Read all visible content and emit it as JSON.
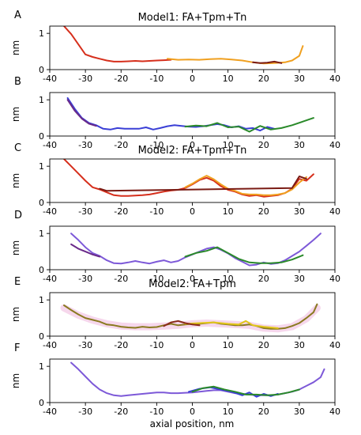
{
  "figure": {
    "xlabel": "axial position, nm"
  },
  "colors": {
    "red": "#d62f1c",
    "orange": "#f0a020",
    "darkred": "#7a1b14",
    "blue": "#3a3fd6",
    "purple": "#6a2a8a",
    "violet": "#7d59d8",
    "green": "#2a8a2a",
    "olive": "#8a7a20",
    "yellow": "#e2c61a",
    "brown": "#8a2a1a",
    "pink": "#f2c6e4",
    "axis": "#000000"
  },
  "chart_data": [
    {
      "type": "line",
      "panel": "A",
      "title": "Model1: FA+Tpm+Tn",
      "ylabel": "nm",
      "xlim": [
        -40,
        40
      ],
      "ylim": [
        0,
        1.2
      ],
      "xticks": [
        -40,
        -30,
        -20,
        -10,
        0,
        10,
        20,
        30,
        40
      ],
      "yticks": [
        0,
        1
      ],
      "series": [
        {
          "color": "red",
          "x": [
            -36,
            -34,
            -32,
            -30,
            -28,
            -26,
            -24,
            -22,
            -20,
            -18,
            -16,
            -14,
            -12,
            -10,
            -8,
            -6
          ],
          "y": [
            1.2,
            0.98,
            0.7,
            0.42,
            0.35,
            0.3,
            0.25,
            0.22,
            0.22,
            0.23,
            0.24,
            0.23,
            0.24,
            0.25,
            0.26,
            0.27
          ]
        },
        {
          "color": "orange",
          "x": [
            -7,
            -4,
            -1,
            2,
            5,
            8,
            11,
            14,
            17,
            20,
            23,
            26,
            28,
            30,
            31
          ],
          "y": [
            0.3,
            0.27,
            0.28,
            0.27,
            0.29,
            0.3,
            0.28,
            0.25,
            0.2,
            0.17,
            0.18,
            0.2,
            0.25,
            0.38,
            0.65
          ]
        },
        {
          "color": "darkred",
          "x": [
            17,
            19,
            21,
            23,
            25
          ],
          "y": [
            0.2,
            0.18,
            0.19,
            0.22,
            0.18
          ]
        }
      ]
    },
    {
      "type": "line",
      "panel": "B",
      "title": "",
      "ylabel": "nm",
      "xlim": [
        -40,
        40
      ],
      "ylim": [
        0,
        1.2
      ],
      "xticks": [
        -40,
        -30,
        -20,
        -10,
        0,
        10,
        20,
        30,
        40
      ],
      "yticks": [
        0,
        1
      ],
      "series": [
        {
          "color": "blue",
          "x": [
            -35,
            -33,
            -31,
            -29,
            -27,
            -25,
            -23,
            -21,
            -19,
            -17,
            -15,
            -13,
            -11,
            -9,
            -7,
            -5,
            -3,
            -1,
            1,
            3,
            5,
            7,
            9,
            11,
            13,
            15,
            17,
            19,
            21,
            23
          ],
          "y": [
            1.05,
            0.75,
            0.5,
            0.36,
            0.3,
            0.2,
            0.18,
            0.22,
            0.2,
            0.2,
            0.2,
            0.24,
            0.18,
            0.22,
            0.27,
            0.3,
            0.28,
            0.26,
            0.25,
            0.27,
            0.3,
            0.33,
            0.3,
            0.24,
            0.27,
            0.2,
            0.22,
            0.15,
            0.25,
            0.2
          ]
        },
        {
          "color": "green",
          "x": [
            -2,
            1,
            4,
            7,
            10,
            13,
            16,
            19,
            22,
            25,
            28,
            31,
            34
          ],
          "y": [
            0.26,
            0.29,
            0.27,
            0.36,
            0.24,
            0.26,
            0.12,
            0.28,
            0.18,
            0.22,
            0.3,
            0.4,
            0.5
          ]
        },
        {
          "color": "purple",
          "x": [
            -35,
            -33,
            -31,
            -29,
            -27
          ],
          "y": [
            1.0,
            0.7,
            0.48,
            0.34,
            0.28
          ]
        }
      ]
    },
    {
      "type": "line",
      "panel": "C",
      "title": "Model2: FA+Tpm+Tn",
      "ylabel": "nm",
      "xlim": [
        -40,
        40
      ],
      "ylim": [
        0,
        1.2
      ],
      "xticks": [
        -40,
        -30,
        -20,
        -10,
        0,
        10,
        20,
        30,
        40
      ],
      "yticks": [
        0,
        1
      ],
      "series": [
        {
          "color": "red",
          "x": [
            -36,
            -34,
            -32,
            -30,
            -28,
            -26,
            -24,
            -22,
            -20,
            -18,
            -16,
            -14,
            -12,
            -10,
            -8,
            -6,
            -4,
            -2,
            0,
            2,
            4,
            6,
            8,
            10,
            12,
            14,
            16,
            18,
            20,
            22,
            24,
            26,
            28,
            30,
            32,
            34
          ],
          "y": [
            1.2,
            1.0,
            0.8,
            0.6,
            0.42,
            0.36,
            0.28,
            0.2,
            0.18,
            0.18,
            0.19,
            0.2,
            0.22,
            0.26,
            0.3,
            0.33,
            0.35,
            0.4,
            0.5,
            0.62,
            0.68,
            0.6,
            0.45,
            0.35,
            0.3,
            0.22,
            0.18,
            0.2,
            0.16,
            0.18,
            0.2,
            0.26,
            0.38,
            0.65,
            0.6,
            0.78
          ]
        },
        {
          "color": "orange",
          "x": [
            -2,
            0,
            2,
            4,
            6,
            8,
            10,
            12,
            14,
            16,
            18,
            20,
            22,
            24,
            26,
            28,
            30,
            32
          ],
          "y": [
            0.42,
            0.52,
            0.64,
            0.74,
            0.64,
            0.5,
            0.38,
            0.32,
            0.24,
            0.22,
            0.22,
            0.2,
            0.2,
            0.22,
            0.26,
            0.36,
            0.55,
            0.7
          ]
        },
        {
          "color": "darkred",
          "x": [
            -26,
            -24,
            28,
            30,
            32
          ],
          "y": [
            0.38,
            0.32,
            0.4,
            0.72,
            0.65
          ]
        }
      ]
    },
    {
      "type": "line",
      "panel": "D",
      "title": "",
      "ylabel": "nm",
      "xlim": [
        -40,
        40
      ],
      "ylim": [
        0,
        1.2
      ],
      "xticks": [
        -40,
        -30,
        -20,
        -10,
        0,
        10,
        20,
        30,
        40
      ],
      "yticks": [
        0,
        1
      ],
      "series": [
        {
          "color": "violet",
          "x": [
            -34,
            -32,
            -30,
            -28,
            -26,
            -24,
            -22,
            -20,
            -18,
            -16,
            -14,
            -12,
            -10,
            -8,
            -6,
            -4,
            -2,
            0,
            2,
            4,
            6,
            8,
            10,
            12,
            14,
            16,
            18,
            20,
            22,
            24,
            26,
            28,
            30,
            32,
            34,
            36
          ],
          "y": [
            1.0,
            0.82,
            0.62,
            0.46,
            0.38,
            0.26,
            0.18,
            0.17,
            0.2,
            0.24,
            0.2,
            0.17,
            0.22,
            0.26,
            0.2,
            0.24,
            0.34,
            0.42,
            0.5,
            0.58,
            0.62,
            0.55,
            0.45,
            0.32,
            0.22,
            0.12,
            0.14,
            0.2,
            0.16,
            0.18,
            0.26,
            0.38,
            0.5,
            0.66,
            0.82,
            1.0
          ]
        },
        {
          "color": "green",
          "x": [
            -2,
            1,
            4,
            7,
            10,
            13,
            16,
            19,
            22,
            25,
            28,
            31
          ],
          "y": [
            0.36,
            0.46,
            0.52,
            0.62,
            0.46,
            0.3,
            0.2,
            0.18,
            0.18,
            0.2,
            0.28,
            0.4
          ]
        },
        {
          "color": "purple",
          "x": [
            -34,
            -32,
            -30,
            -28,
            -26
          ],
          "y": [
            0.7,
            0.58,
            0.5,
            0.42,
            0.36
          ]
        }
      ]
    },
    {
      "type": "line",
      "panel": "E",
      "title": "Model2: FA+Tpm",
      "ylabel": "nm",
      "xlim": [
        -40,
        40
      ],
      "ylim": [
        0,
        1.2
      ],
      "xticks": [
        -40,
        -30,
        -20,
        -10,
        0,
        10,
        20,
        30,
        40
      ],
      "yticks": [
        0,
        1
      ],
      "series": [
        {
          "color": "pink",
          "x": [
            -36,
            -32,
            -28,
            -24,
            -20,
            -16,
            -12,
            -8,
            -4,
            0,
            4,
            8,
            12,
            16,
            20,
            24,
            28,
            32,
            35
          ],
          "y": [
            0.78,
            0.58,
            0.44,
            0.34,
            0.28,
            0.26,
            0.26,
            0.28,
            0.3,
            0.34,
            0.36,
            0.34,
            0.32,
            0.3,
            0.22,
            0.2,
            0.26,
            0.48,
            0.78
          ]
        },
        {
          "color": "olive",
          "x": [
            -36,
            -34,
            -32,
            -30,
            -28,
            -26,
            -24,
            -22,
            -20,
            -18,
            -16,
            -14,
            -12,
            -10,
            -8,
            -6,
            -4,
            -2,
            0,
            2,
            4,
            6,
            8,
            10,
            12,
            14,
            16,
            18,
            20,
            22,
            24,
            26,
            28,
            30,
            32,
            34,
            35
          ],
          "y": [
            0.85,
            0.72,
            0.6,
            0.5,
            0.45,
            0.4,
            0.32,
            0.3,
            0.26,
            0.24,
            0.23,
            0.26,
            0.24,
            0.25,
            0.3,
            0.34,
            0.3,
            0.32,
            0.34,
            0.34,
            0.36,
            0.38,
            0.34,
            0.32,
            0.3,
            0.3,
            0.32,
            0.28,
            0.22,
            0.2,
            0.2,
            0.22,
            0.28,
            0.36,
            0.5,
            0.66,
            0.88
          ]
        },
        {
          "color": "yellow",
          "x": [
            -2,
            2,
            6,
            10,
            13,
            15,
            17,
            20,
            24
          ],
          "y": [
            0.34,
            0.36,
            0.38,
            0.34,
            0.32,
            0.42,
            0.3,
            0.26,
            0.22
          ]
        },
        {
          "color": "brown",
          "x": [
            -8,
            -6,
            -4,
            -2,
            0,
            2
          ],
          "y": [
            0.28,
            0.38,
            0.42,
            0.36,
            0.32,
            0.3
          ]
        }
      ]
    },
    {
      "type": "line",
      "panel": "F",
      "title": "",
      "ylabel": "nm",
      "xlim": [
        -40,
        40
      ],
      "ylim": [
        0,
        1.2
      ],
      "xticks": [
        -40,
        -30,
        -20,
        -10,
        0,
        10,
        20,
        30,
        40
      ],
      "yticks": [
        0,
        1
      ],
      "series": [
        {
          "color": "violet",
          "x": [
            -34,
            -32,
            -30,
            -28,
            -26,
            -24,
            -22,
            -20,
            -18,
            -16,
            -14,
            -12,
            -10,
            -8,
            -6,
            -4,
            -2,
            0,
            2,
            4,
            6,
            8,
            10,
            12,
            14,
            16,
            18,
            20,
            22,
            24,
            26,
            28,
            30,
            32,
            34,
            36,
            37
          ],
          "y": [
            1.1,
            0.92,
            0.72,
            0.52,
            0.36,
            0.26,
            0.2,
            0.18,
            0.2,
            0.22,
            0.24,
            0.26,
            0.28,
            0.28,
            0.26,
            0.26,
            0.27,
            0.28,
            0.3,
            0.32,
            0.34,
            0.34,
            0.3,
            0.26,
            0.24,
            0.22,
            0.2,
            0.2,
            0.2,
            0.22,
            0.26,
            0.3,
            0.36,
            0.46,
            0.56,
            0.7,
            0.92
          ]
        },
        {
          "color": "blue",
          "x": [
            -1,
            2,
            5,
            8,
            11,
            14,
            16,
            18,
            20,
            22,
            24
          ],
          "y": [
            0.3,
            0.38,
            0.42,
            0.36,
            0.3,
            0.2,
            0.28,
            0.16,
            0.24,
            0.18,
            0.24
          ]
        },
        {
          "color": "green",
          "x": [
            0,
            3,
            6,
            9,
            12,
            15,
            18,
            21,
            24,
            27,
            30
          ],
          "y": [
            0.3,
            0.4,
            0.44,
            0.36,
            0.3,
            0.22,
            0.22,
            0.2,
            0.22,
            0.28,
            0.36
          ]
        }
      ]
    }
  ]
}
